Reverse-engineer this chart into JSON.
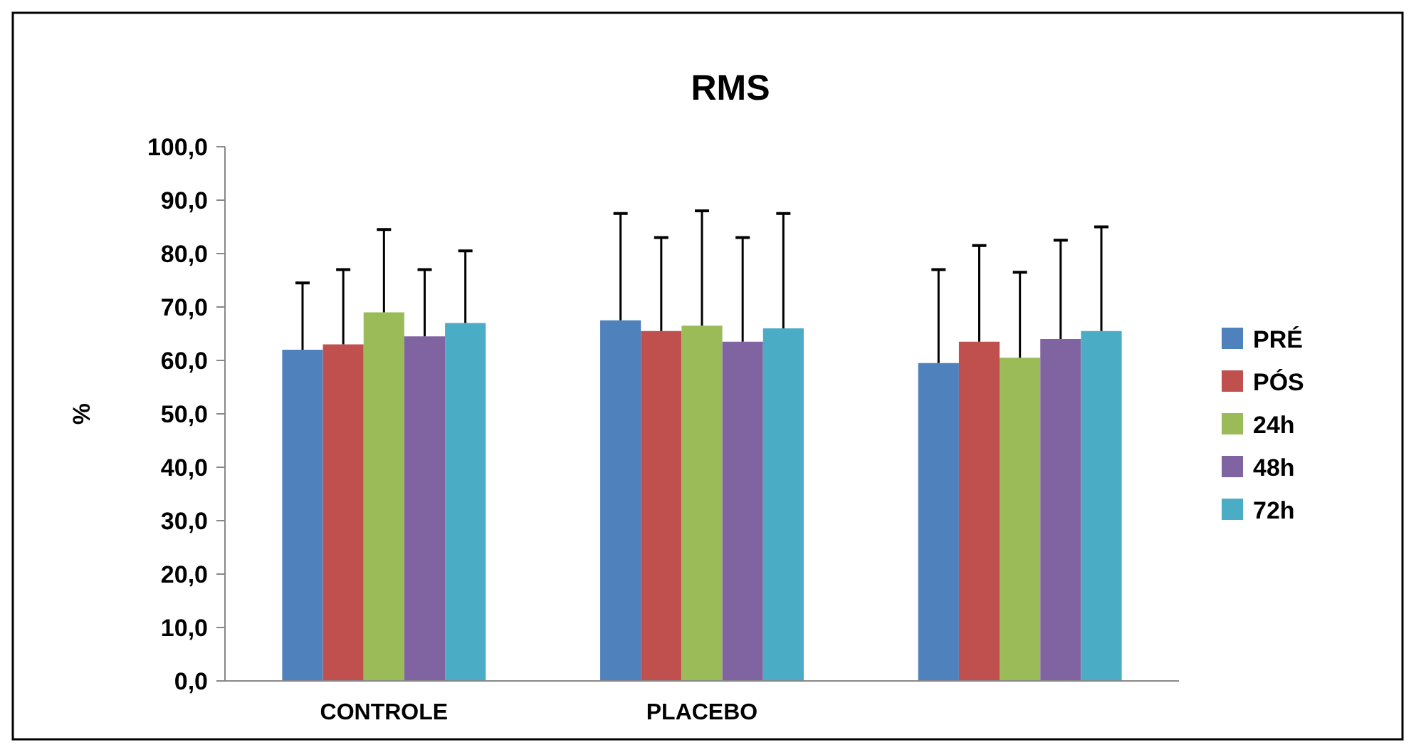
{
  "chart_data": {
    "type": "bar",
    "title": "RMS",
    "ylabel": "%",
    "categories": [
      "CONTROLE",
      "PLACEBO",
      null
    ],
    "ylim": [
      0,
      100
    ],
    "yticks": [
      {
        "value": 0,
        "label": "0,0"
      },
      {
        "value": 10,
        "label": "10,0"
      },
      {
        "value": 20,
        "label": "20,0"
      },
      {
        "value": 30,
        "label": "30,0"
      },
      {
        "value": 40,
        "label": "40,0"
      },
      {
        "value": 50,
        "label": "50,0"
      },
      {
        "value": 60,
        "label": "60,0"
      },
      {
        "value": 70,
        "label": "70,0"
      },
      {
        "value": 80,
        "label": "80,0"
      },
      {
        "value": 90,
        "label": "90,0"
      },
      {
        "value": 100,
        "label": "100,0"
      }
    ],
    "grid": false,
    "legend": "right",
    "series": [
      {
        "name": "PRÉ",
        "color": "#4f81bd",
        "values": [
          62,
          67.5,
          59.5
        ],
        "errors": [
          [
            62,
            74.5
          ],
          [
            67.5,
            87.5
          ],
          [
            59.5,
            77
          ]
        ]
      },
      {
        "name": "PÓS",
        "color": "#c0504d",
        "values": [
          63,
          65.5,
          63.5
        ],
        "errors": [
          [
            63,
            77
          ],
          [
            65.5,
            83
          ],
          [
            63.5,
            81.5
          ]
        ]
      },
      {
        "name": "24h",
        "color": "#9bbb59",
        "values": [
          69,
          66.5,
          60.5
        ],
        "errors": [
          [
            69,
            84.5
          ],
          [
            66.5,
            88
          ],
          [
            60.5,
            76.5
          ]
        ]
      },
      {
        "name": "48h",
        "color": "#8064a2",
        "values": [
          64.5,
          63.5,
          64
        ],
        "errors": [
          [
            64.5,
            77
          ],
          [
            63.5,
            83
          ],
          [
            64,
            82.5
          ]
        ]
      },
      {
        "name": "72h",
        "color": "#4bacc6",
        "values": [
          67,
          66,
          65.5
        ],
        "errors": [
          [
            67,
            80.5
          ],
          [
            66,
            87.5
          ],
          [
            65.5,
            85
          ]
        ]
      }
    ]
  }
}
